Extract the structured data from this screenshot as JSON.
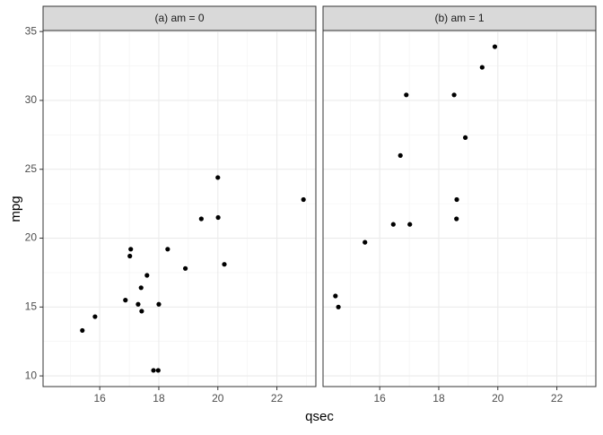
{
  "chart_data": {
    "type": "scatter",
    "x_label": "qsec",
    "y_label": "mpg",
    "xlim": [
      14.08,
      23.32
    ],
    "ylim": [
      9.225,
      35.075
    ],
    "xticks": [
      16,
      18,
      20,
      22
    ],
    "yticks": [
      10,
      15,
      20,
      25,
      30,
      35
    ],
    "grid": true,
    "color": "#000000",
    "panels": [
      {
        "title": "(a) am = 0",
        "x": [
          19.44,
          17.02,
          20.22,
          15.84,
          20.0,
          22.9,
          18.3,
          18.9,
          17.4,
          17.6,
          18.0,
          17.98,
          17.82,
          17.42,
          20.01,
          16.87,
          17.3,
          15.41,
          17.05
        ],
        "values": [
          21.4,
          18.7,
          18.1,
          14.3,
          24.4,
          22.8,
          19.2,
          17.8,
          16.4,
          17.3,
          15.2,
          10.4,
          10.4,
          14.7,
          21.5,
          15.5,
          15.2,
          13.3,
          19.2
        ]
      },
      {
        "title": "(b) am = 1",
        "x": [
          16.46,
          17.02,
          18.61,
          19.47,
          18.52,
          19.9,
          18.9,
          16.7,
          16.9,
          14.5,
          15.5,
          14.6,
          18.6
        ],
        "values": [
          21.0,
          21.0,
          22.8,
          32.4,
          30.4,
          33.9,
          27.3,
          26.0,
          30.4,
          15.8,
          19.7,
          15.0,
          21.4
        ]
      }
    ]
  }
}
